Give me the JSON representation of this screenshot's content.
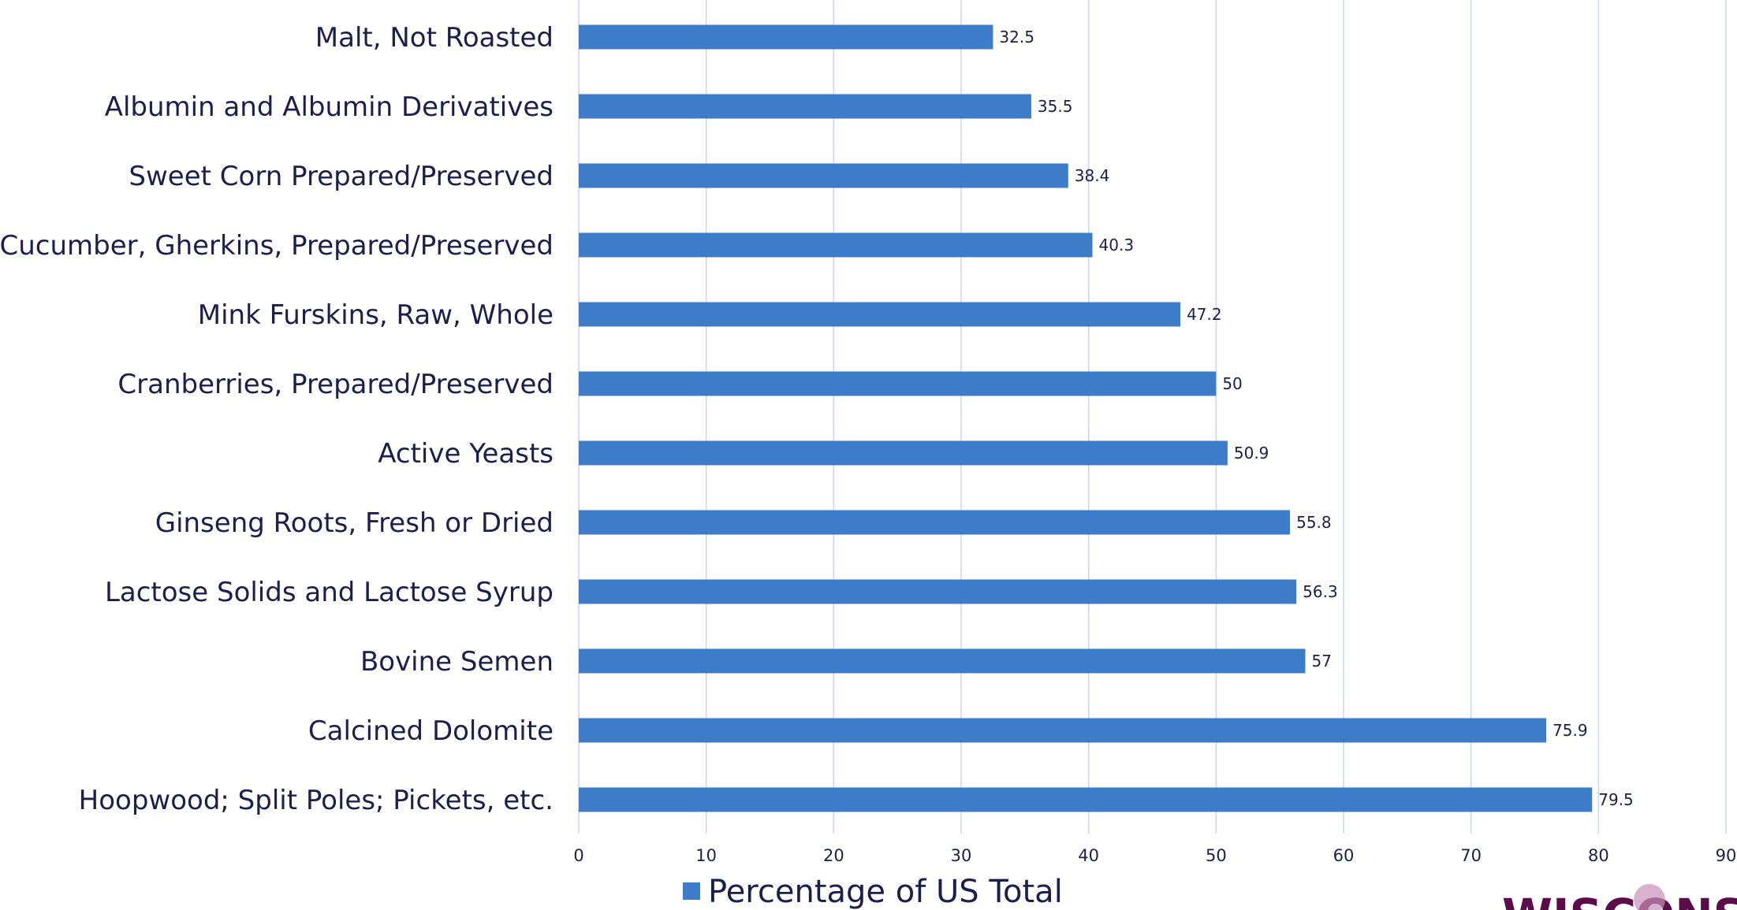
{
  "chart_data": {
    "type": "bar",
    "orientation": "horizontal",
    "categories": [
      "Malt, Not Roasted",
      "Albumin and Albumin Derivatives",
      "Sweet Corn Prepared/Preserved",
      "Cucumber, Gherkins, Prepared/Preserved",
      "Mink Furskins, Raw, Whole",
      "Cranberries, Prepared/Preserved",
      "Active Yeasts",
      "Ginseng Roots, Fresh or Dried",
      "Lactose Solids and Lactose Syrup",
      "Bovine Semen",
      "Calcined Dolomite",
      "Hoopwood; Split Poles; Pickets, etc."
    ],
    "series": [
      {
        "name": "Percentage of US Total",
        "values": [
          32.5,
          35.5,
          38.4,
          40.3,
          47.2,
          50,
          50.9,
          55.8,
          56.3,
          57,
          75.9,
          79.5
        ],
        "value_labels": [
          "32.5",
          "35.5",
          "38.4",
          "40.3",
          "47.2",
          "50",
          "50.9",
          "55.8",
          "56.3",
          "57",
          "75.9",
          "79.5"
        ],
        "color": "#3d7cc9"
      }
    ],
    "xlim": [
      0,
      90
    ],
    "ticks": [
      "0",
      "10",
      "20",
      "30",
      "40",
      "50",
      "60",
      "70",
      "80",
      "90"
    ],
    "grid": true,
    "grid_color": "#cdd3f0",
    "legend": {
      "position": "bottom",
      "label": "Percentage of US Total"
    },
    "title": "",
    "xlabel": "",
    "ylabel": ""
  },
  "logo": {
    "text": "WISCONSI",
    "color": "#5b0d4a"
  }
}
